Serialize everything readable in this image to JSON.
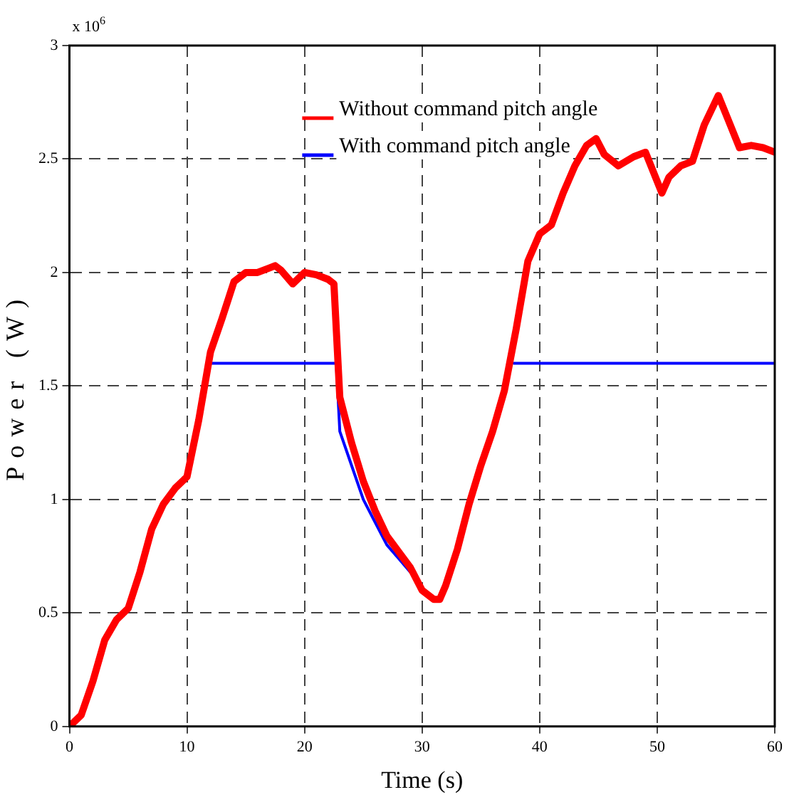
{
  "chart_data": {
    "type": "line",
    "xlabel": "Time (s)",
    "ylabel": "Power (W)",
    "annotations": [
      "x 10$^{6}$"
    ],
    "xlim": [
      0,
      60
    ],
    "xticks": [
      0,
      10,
      20,
      30,
      40,
      50,
      60
    ],
    "ylim": [
      0,
      3
    ],
    "yticks": [
      0,
      0.5,
      1,
      1.5,
      2,
      2.5,
      3
    ],
    "grid": true,
    "legend": "top",
    "marker": "none",
    "line_style": "solid",
    "series": [
      {
        "name": "Without command pitch angle",
        "color": "#ff0000",
        "x": [
          0,
          1,
          2,
          3,
          4,
          5,
          6,
          7,
          8,
          9,
          10,
          11,
          12,
          13,
          14,
          15,
          16,
          17,
          17.5,
          18,
          19,
          20,
          21,
          22,
          22.5,
          23,
          24,
          25,
          26,
          27,
          28,
          29,
          30,
          31,
          31.5,
          32,
          33,
          34,
          35,
          36,
          37,
          38,
          39,
          40,
          41,
          42,
          43,
          44,
          44.8,
          45.5,
          46.7,
          48,
          49,
          50.4,
          51,
          52,
          53,
          54,
          55.2,
          57,
          58,
          59,
          60
        ],
        "values": [
          0,
          0.05,
          0.2,
          0.38,
          0.47,
          0.52,
          0.68,
          0.87,
          0.98,
          1.05,
          1.1,
          1.35,
          1.65,
          1.8,
          1.96,
          2.0,
          2.0,
          2.02,
          2.03,
          2.01,
          1.95,
          2.0,
          1.99,
          1.97,
          1.95,
          1.45,
          1.25,
          1.08,
          0.95,
          0.84,
          0.77,
          0.7,
          0.6,
          0.56,
          0.56,
          0.62,
          0.78,
          0.98,
          1.15,
          1.3,
          1.48,
          1.75,
          2.05,
          2.17,
          2.21,
          2.35,
          2.47,
          2.56,
          2.59,
          2.52,
          2.47,
          2.51,
          2.53,
          2.35,
          2.42,
          2.47,
          2.49,
          2.65,
          2.78,
          2.55,
          2.56,
          2.55,
          2.53
        ]
      },
      {
        "name": "With command pitch angle",
        "color": "#0000ff",
        "x": [
          12,
          22.7,
          23,
          24,
          25,
          26,
          27,
          28,
          29,
          30,
          31,
          37.8,
          60
        ],
        "values": [
          1.6,
          1.6,
          1.3,
          1.15,
          1.0,
          0.9,
          0.8,
          0.74,
          0.68,
          null,
          null,
          1.6,
          1.6
        ]
      }
    ]
  }
}
